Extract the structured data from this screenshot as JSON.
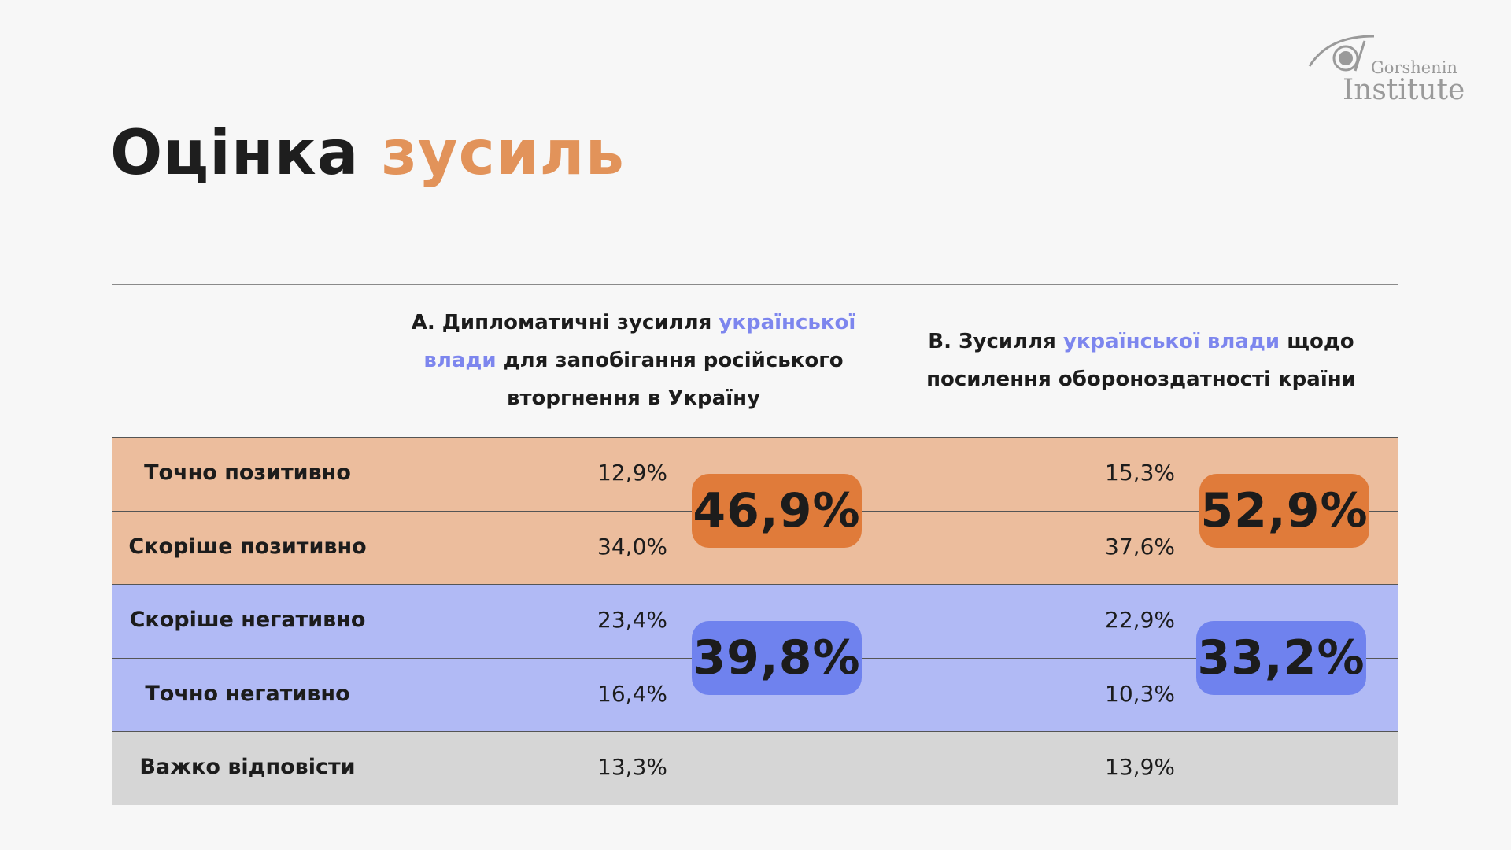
{
  "logo": {
    "line1": "Gorshenin",
    "line2": "Institute"
  },
  "title": {
    "main": "Оцінка",
    "accent": "зусиль"
  },
  "colors": {
    "accent_orange": "#e2935a",
    "positive_band": "#ecbd9d",
    "negative_band": "#b1baf5",
    "neutral_band": "#d6d6d6",
    "positive_badge": "#e07b3a",
    "negative_badge": "#6f82ee",
    "highlight_text": "#7d86ee"
  },
  "chart_data": {
    "type": "table",
    "columns": [
      {
        "id": "A",
        "lines": [
          {
            "parts": [
              {
                "text": "А. Дипломатичні зусилля ",
                "hl": false
              },
              {
                "text": "української",
                "hl": true
              }
            ]
          },
          {
            "parts": [
              {
                "text": "влади",
                "hl": true
              },
              {
                "text": " для запобігання російського",
                "hl": false
              }
            ]
          },
          {
            "parts": [
              {
                "text": "вторгнення в Україну",
                "hl": false
              }
            ]
          }
        ]
      },
      {
        "id": "B",
        "lines": [
          {
            "parts": [
              {
                "text": "В. Зусилля ",
                "hl": false
              },
              {
                "text": "української влади",
                "hl": true
              },
              {
                "text": " щодо",
                "hl": false
              }
            ]
          },
          {
            "parts": [
              {
                "text": "посилення обороноздатності країни",
                "hl": false
              }
            ]
          }
        ]
      }
    ],
    "rows": [
      {
        "label": "Точно позитивно",
        "group": "positive",
        "values": [
          "12,9%",
          "15,3%"
        ]
      },
      {
        "label": "Скоріше позитивно",
        "group": "positive",
        "values": [
          "34,0%",
          "37,6%"
        ]
      },
      {
        "label": "Скоріше негативно",
        "group": "negative",
        "values": [
          "23,4%",
          "22,9%"
        ]
      },
      {
        "label": "Точно негативно",
        "group": "negative",
        "values": [
          "16,4%",
          "10,3%"
        ]
      },
      {
        "label": "Важко відповісти",
        "group": "neutral",
        "values": [
          "13,3%",
          "13,9%"
        ]
      }
    ],
    "totals": {
      "positive": [
        "46,9%",
        "52,9%"
      ],
      "negative": [
        "39,8%",
        "33,2%"
      ]
    }
  }
}
